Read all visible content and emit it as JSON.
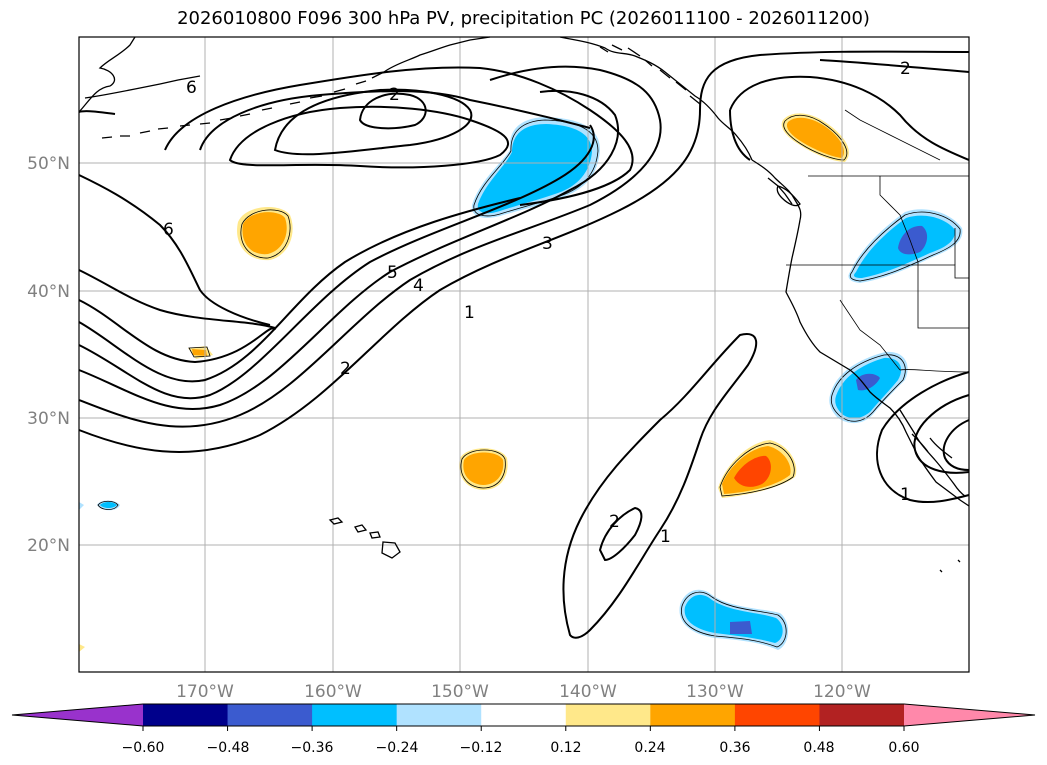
{
  "title": "2026010800 F096 300 hPa PV, precipitation PC (2026011100 - 2026011200)",
  "map": {
    "lat_labels": [
      "50°N",
      "40°N",
      "30°N",
      "20°N"
    ],
    "lon_labels": [
      "170°W",
      "160°W",
      "150°W",
      "140°W",
      "130°W",
      "120°W"
    ],
    "contour_labels": [
      "6",
      "6",
      "2",
      "2",
      "5",
      "4",
      "3",
      "1",
      "2",
      "2",
      "1",
      "1"
    ]
  },
  "colorbar": {
    "ticks": [
      "−0.60",
      "−0.48",
      "−0.36",
      "−0.24",
      "−0.12",
      "0.12",
      "0.24",
      "0.36",
      "0.48",
      "0.60"
    ],
    "colors": {
      "under": "#9932cc",
      "bins": [
        "#00008b",
        "#3b5bcf",
        "#00bfff",
        "#b0e2ff",
        "#ffffff",
        "#ffe88a",
        "#ffa500",
        "#ff4500",
        "#b22222"
      ],
      "over": "#ff88aa"
    }
  },
  "shading_colors": {
    "pos_light": "#ffe88a",
    "pos_mid": "#ffa500",
    "pos_high": "#ff4500",
    "neg_light": "#b0e2ff",
    "neg_mid": "#00bfff",
    "neg_high": "#3b5bcf"
  }
}
